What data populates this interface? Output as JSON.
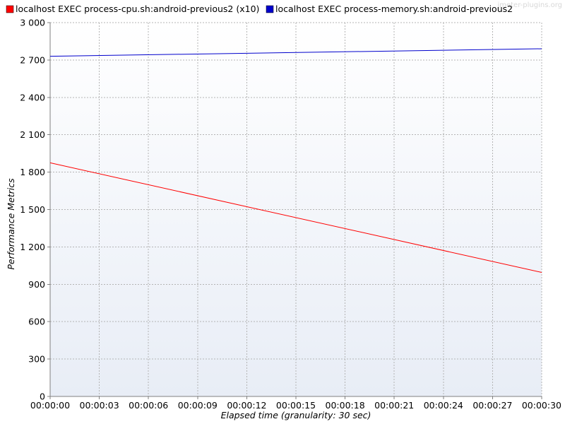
{
  "watermark": "jmeter-plugins.org",
  "colors": {
    "plot_bg_top": "#ffffff",
    "plot_bg_bottom": "#e8edf6",
    "grid": "#b4b4b4",
    "axis": "#808080"
  },
  "chart_data": {
    "type": "line",
    "xlabel": "Elapsed time (granularity: 30 sec)",
    "ylabel": "Performance Metrics",
    "xlim": [
      0,
      30
    ],
    "ylim": [
      0,
      3000
    ],
    "x_ticks": [
      0,
      3,
      6,
      9,
      12,
      15,
      18,
      21,
      24,
      27,
      30
    ],
    "x_tick_labels": [
      "00:00:00",
      "00:00:03",
      "00:00:06",
      "00:00:09",
      "00:00:12",
      "00:00:15",
      "00:00:18",
      "00:00:21",
      "00:00:24",
      "00:00:27",
      "00:00:30"
    ],
    "y_ticks": [
      0,
      300,
      600,
      900,
      1200,
      1500,
      1800,
      2100,
      2400,
      2700,
      3000
    ],
    "y_tick_labels": [
      "0",
      "300",
      "600",
      "900",
      "1 200",
      "1 500",
      "1 800",
      "2 100",
      "2 400",
      "2 700",
      "3 000"
    ],
    "grid": true,
    "legend_position": "top-left",
    "series": [
      {
        "name": "localhost EXEC process-cpu.sh:android-previous2 (x10)",
        "color": "#ff0000",
        "x": [
          0,
          30
        ],
        "y": [
          1875,
          995
        ]
      },
      {
        "name": "localhost EXEC process-memory.sh:android-previous2",
        "color": "#0000cc",
        "x": [
          0,
          30
        ],
        "y": [
          2730,
          2790
        ]
      }
    ]
  }
}
